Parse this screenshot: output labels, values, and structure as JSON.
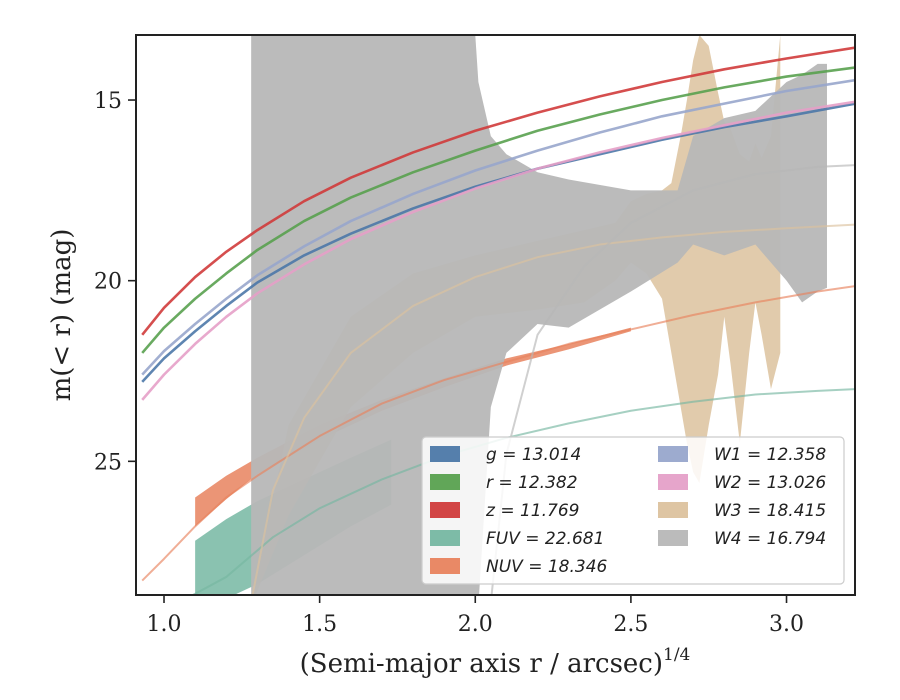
{
  "chart_data": {
    "type": "area",
    "xlabel": "(Semi-major axis r / arcsec)",
    "xlabel_sup": "1/4",
    "ylabel": "m(< r) (mag)",
    "xlim": [
      0.91,
      3.22
    ],
    "ylim": [
      28.7,
      13.2
    ],
    "y_inverted": true,
    "xticks": [
      1.0,
      1.5,
      2.0,
      2.5,
      3.0
    ],
    "xtick_labels": [
      "1.0",
      "1.5",
      "2.0",
      "2.5",
      "3.0"
    ],
    "yticks": [
      15,
      20,
      25
    ],
    "ytick_labels": [
      "15",
      "20",
      "25"
    ],
    "legend_placement": "lower-right",
    "legend_columns": 2,
    "series": [
      {
        "name": "g = 13.014",
        "sym": "g",
        "val": "13.014",
        "color": "#4c78a8",
        "curve": [
          [
            0.93,
            22.8
          ],
          [
            1.0,
            22.15
          ],
          [
            1.1,
            21.4
          ],
          [
            1.2,
            20.7
          ],
          [
            1.3,
            20.05
          ],
          [
            1.45,
            19.3
          ],
          [
            1.6,
            18.7
          ],
          [
            1.8,
            18.0
          ],
          [
            2.0,
            17.4
          ],
          [
            2.2,
            16.9
          ],
          [
            2.4,
            16.5
          ],
          [
            2.6,
            16.1
          ],
          [
            2.8,
            15.75
          ],
          [
            3.0,
            15.45
          ],
          [
            3.22,
            15.1
          ]
        ]
      },
      {
        "name": "r = 12.382",
        "sym": "r",
        "val": "12.382",
        "color": "#59a14f",
        "curve": [
          [
            0.93,
            22.0
          ],
          [
            1.0,
            21.3
          ],
          [
            1.1,
            20.5
          ],
          [
            1.2,
            19.8
          ],
          [
            1.3,
            19.15
          ],
          [
            1.45,
            18.35
          ],
          [
            1.6,
            17.7
          ],
          [
            1.8,
            17.0
          ],
          [
            2.0,
            16.4
          ],
          [
            2.2,
            15.85
          ],
          [
            2.4,
            15.4
          ],
          [
            2.6,
            15.0
          ],
          [
            2.8,
            14.65
          ],
          [
            3.0,
            14.35
          ],
          [
            3.22,
            14.1
          ]
        ]
      },
      {
        "name": "z = 11.769",
        "sym": "z",
        "val": "11.769",
        "color": "#d03b3b",
        "curve": [
          [
            0.93,
            21.5
          ],
          [
            1.0,
            20.75
          ],
          [
            1.1,
            19.9
          ],
          [
            1.2,
            19.2
          ],
          [
            1.3,
            18.6
          ],
          [
            1.45,
            17.8
          ],
          [
            1.6,
            17.15
          ],
          [
            1.8,
            16.45
          ],
          [
            2.0,
            15.85
          ],
          [
            2.2,
            15.35
          ],
          [
            2.4,
            14.9
          ],
          [
            2.6,
            14.5
          ],
          [
            2.8,
            14.15
          ],
          [
            3.0,
            13.85
          ],
          [
            3.22,
            13.55
          ]
        ]
      },
      {
        "name": "FUV = 22.681",
        "sym": "FUV",
        "val": "22.681",
        "color": "#76b7a2",
        "band": [
          [
            1.1,
            27.2,
            29.0
          ],
          [
            1.2,
            26.6,
            28.8
          ],
          [
            1.3,
            26.1,
            28.4
          ],
          [
            1.45,
            25.5,
            27.6
          ],
          [
            1.6,
            24.9,
            26.8
          ],
          [
            1.73,
            24.4,
            26.2
          ]
        ],
        "curve": [
          [
            1.05,
            28.9
          ],
          [
            1.2,
            28.2
          ],
          [
            1.35,
            27.1
          ],
          [
            1.5,
            26.3
          ],
          [
            1.7,
            25.5
          ],
          [
            1.9,
            24.85
          ],
          [
            2.1,
            24.35
          ],
          [
            2.3,
            23.95
          ],
          [
            2.5,
            23.6
          ],
          [
            2.7,
            23.35
          ],
          [
            2.9,
            23.15
          ],
          [
            3.1,
            23.05
          ],
          [
            3.22,
            23.0
          ]
        ]
      },
      {
        "name": "NUV = 18.346",
        "sym": "NUV",
        "val": "18.346",
        "color": "#e8835e",
        "band": [
          [
            1.1,
            26.0,
            26.8
          ],
          [
            1.2,
            25.4,
            26.05
          ],
          [
            1.3,
            24.9,
            25.35
          ],
          [
            1.5,
            24.0,
            24.4
          ],
          [
            1.7,
            23.3,
            23.6
          ],
          [
            1.9,
            22.7,
            22.95
          ],
          [
            2.1,
            22.15,
            22.35
          ],
          [
            2.3,
            21.75,
            21.9
          ],
          [
            2.5,
            21.3,
            21.4
          ]
        ],
        "curve": [
          [
            0.93,
            28.3
          ],
          [
            1.0,
            27.7
          ],
          [
            1.1,
            26.8
          ],
          [
            1.2,
            26.0
          ],
          [
            1.3,
            25.4
          ],
          [
            1.5,
            24.3
          ],
          [
            1.7,
            23.4
          ],
          [
            1.9,
            22.75
          ],
          [
            2.1,
            22.25
          ],
          [
            2.3,
            21.75
          ],
          [
            2.5,
            21.35
          ],
          [
            2.7,
            20.95
          ],
          [
            2.9,
            20.6
          ],
          [
            3.1,
            20.3
          ],
          [
            3.22,
            20.15
          ]
        ]
      },
      {
        "name": "W1 = 12.358",
        "sym": "W1",
        "val": "12.358",
        "color": "#98a6cc",
        "curve": [
          [
            0.93,
            22.6
          ],
          [
            1.0,
            21.95
          ],
          [
            1.1,
            21.2
          ],
          [
            1.2,
            20.5
          ],
          [
            1.3,
            19.85
          ],
          [
            1.45,
            19.05
          ],
          [
            1.6,
            18.35
          ],
          [
            1.8,
            17.6
          ],
          [
            2.0,
            16.95
          ],
          [
            2.2,
            16.4
          ],
          [
            2.4,
            15.9
          ],
          [
            2.6,
            15.45
          ],
          [
            2.8,
            15.1
          ],
          [
            3.0,
            14.75
          ],
          [
            3.22,
            14.45
          ]
        ]
      },
      {
        "name": "W2 = 13.026",
        "sym": "W2",
        "val": "13.026",
        "color": "#e5a0c8",
        "curve": [
          [
            0.93,
            23.3
          ],
          [
            1.0,
            22.6
          ],
          [
            1.1,
            21.75
          ],
          [
            1.2,
            21.0
          ],
          [
            1.3,
            20.35
          ],
          [
            1.45,
            19.55
          ],
          [
            1.6,
            18.85
          ],
          [
            1.8,
            18.1
          ],
          [
            2.0,
            17.45
          ],
          [
            2.2,
            16.9
          ],
          [
            2.4,
            16.45
          ],
          [
            2.6,
            16.05
          ],
          [
            2.8,
            15.7
          ],
          [
            3.0,
            15.35
          ],
          [
            3.22,
            15.05
          ]
        ]
      },
      {
        "name": "W3 = 18.415",
        "sym": "W3",
        "val": "18.415",
        "color": "#dcc29e",
        "band": [
          [
            1.28,
            28.9,
            29.0
          ],
          [
            1.4,
            24.0,
            26.5
          ],
          [
            1.6,
            21.0,
            23.5
          ],
          [
            1.8,
            19.8,
            22.0
          ],
          [
            2.0,
            19.3,
            21.0
          ],
          [
            2.2,
            18.9,
            20.8
          ],
          [
            2.35,
            18.6,
            20.6
          ],
          [
            2.45,
            18.4,
            20.0
          ],
          [
            2.5,
            17.8,
            19.5
          ],
          [
            2.55,
            17.6,
            19.8
          ],
          [
            2.6,
            17.5,
            20.5
          ],
          [
            2.63,
            17.3,
            22.0
          ],
          [
            2.66,
            16.0,
            23.5
          ],
          [
            2.68,
            15.0,
            24.5
          ],
          [
            2.7,
            13.9,
            25.3
          ],
          [
            2.72,
            13.2,
            25.6
          ],
          [
            2.75,
            13.5,
            24.0
          ],
          [
            2.78,
            14.8,
            22.6
          ],
          [
            2.8,
            15.6,
            21.0
          ],
          [
            2.82,
            15.8,
            22.3
          ],
          [
            2.85,
            16.5,
            24.5
          ],
          [
            2.88,
            16.7,
            22.0
          ],
          [
            2.9,
            16.2,
            20.6
          ],
          [
            2.92,
            16.6,
            21.5
          ],
          [
            2.95,
            16.0,
            23.0
          ],
          [
            2.98,
            13.2,
            22.0
          ]
        ],
        "curve": [
          [
            1.28,
            28.9
          ],
          [
            1.35,
            25.8
          ],
          [
            1.45,
            23.8
          ],
          [
            1.6,
            22.0
          ],
          [
            1.8,
            20.7
          ],
          [
            2.0,
            19.9
          ],
          [
            2.2,
            19.35
          ],
          [
            2.4,
            19.0
          ],
          [
            2.6,
            18.8
          ],
          [
            2.8,
            18.65
          ],
          [
            3.0,
            18.55
          ],
          [
            3.22,
            18.45
          ]
        ]
      },
      {
        "name": "W4 = 16.794",
        "sym": "W4",
        "val": "16.794",
        "color": "#b7b7b7",
        "band": [
          [
            1.28,
            13.2,
            29.0
          ],
          [
            2.0,
            13.2,
            29.0
          ],
          [
            2.01,
            14.5,
            29.0
          ],
          [
            2.05,
            16.0,
            23.5
          ],
          [
            2.1,
            16.5,
            22.0
          ],
          [
            2.2,
            17.0,
            21.2
          ],
          [
            2.3,
            17.2,
            21.3
          ],
          [
            2.5,
            17.5,
            20.3
          ],
          [
            2.65,
            17.5,
            19.5
          ],
          [
            2.7,
            16.0,
            19.0
          ],
          [
            2.8,
            15.5,
            19.3
          ],
          [
            2.9,
            15.3,
            19.0
          ],
          [
            3.0,
            14.5,
            20.0
          ],
          [
            3.05,
            14.3,
            20.6
          ],
          [
            3.1,
            14.0,
            20.3
          ],
          [
            3.13,
            14.0,
            20.2
          ]
        ],
        "curve": [
          [
            2.05,
            28.9
          ],
          [
            2.1,
            24.8
          ],
          [
            2.2,
            21.5
          ],
          [
            2.35,
            19.6
          ],
          [
            2.5,
            18.4
          ],
          [
            2.7,
            17.5
          ],
          [
            2.9,
            17.05
          ],
          [
            3.1,
            16.85
          ],
          [
            3.22,
            16.8
          ]
        ]
      }
    ]
  }
}
